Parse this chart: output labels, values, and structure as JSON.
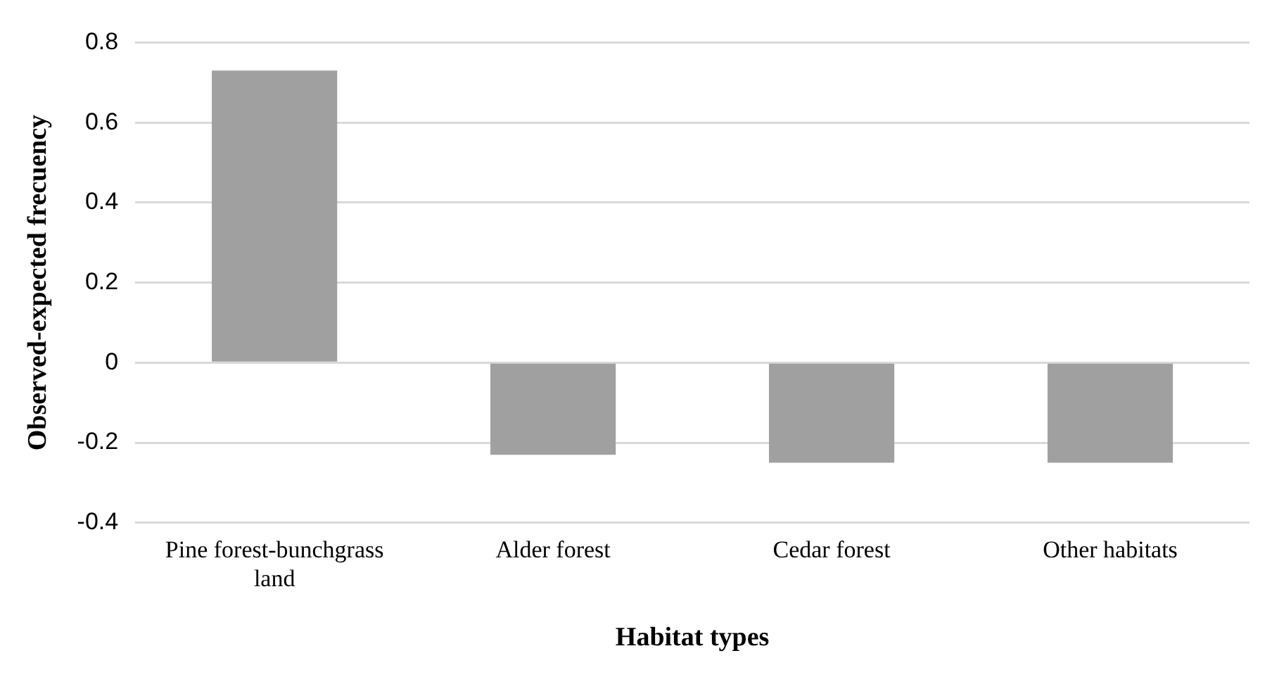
{
  "chart_data": {
    "type": "bar",
    "xlabel": "Habitat types",
    "ylabel": "Observed-expected frecuency",
    "categories": [
      "Pine forest-bunchgrass land",
      "Alder forest",
      "Cedar forest",
      "Other habitats"
    ],
    "values": [
      0.73,
      -0.23,
      -0.25,
      -0.25
    ],
    "color": "#a0a0a0",
    "ylim": [
      -0.4,
      0.8
    ],
    "yticks": [
      -0.4,
      -0.2,
      0,
      0.2,
      0.4,
      0.6,
      0.8
    ],
    "grid": "y",
    "legend": false
  }
}
